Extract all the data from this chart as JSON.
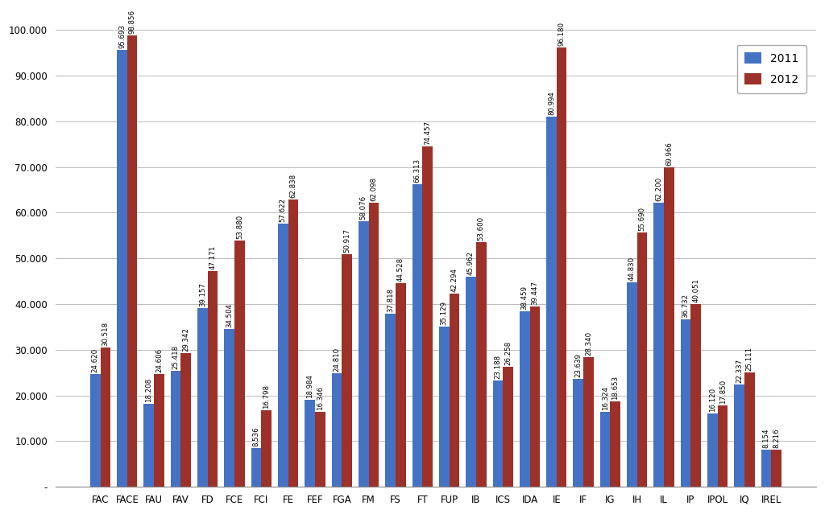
{
  "categories": [
    "FAC",
    "FACE",
    "FAU",
    "FAV",
    "FD",
    "FCE",
    "FCI",
    "FE",
    "FEF",
    "FGA",
    "FM",
    "FS",
    "FT",
    "FUP",
    "IB",
    "ICS",
    "IDA",
    "IE",
    "IF",
    "IG",
    "IH",
    "IL",
    "IP",
    "IPOL",
    "IQ",
    "IREL"
  ],
  "values_2011": [
    24620,
    95693,
    18208,
    25418,
    39157,
    34504,
    8536,
    57622,
    18984,
    24810,
    58076,
    37818,
    66313,
    35129,
    45962,
    23188,
    38459,
    80994,
    23639,
    16324,
    44830,
    62200,
    36732,
    16120,
    22337,
    8154
  ],
  "values_2012": [
    30518,
    98856,
    24606,
    29342,
    47171,
    53880,
    16798,
    62838,
    16346,
    50917,
    62098,
    44528,
    74457,
    42294,
    53600,
    26258,
    39447,
    96180,
    28340,
    18653,
    55690,
    69966,
    40051,
    17850,
    25111,
    8216
  ],
  "labels_2011": [
    "24.620",
    "95.693",
    "18.208",
    "25.418",
    "39.157",
    "34.504",
    "8.536",
    "57.622",
    "18.984",
    "24.810",
    "58.076",
    "37.818",
    "66.313",
    "35.129",
    "45.962",
    "23.188",
    "38.459",
    "80.994",
    "23.639",
    "16.324",
    "44.830",
    "62.200",
    "36.732",
    "16.120",
    "22.337",
    "8.154"
  ],
  "labels_2012": [
    "30.518",
    "98.856",
    "24.606",
    "29.342",
    "47.171",
    "53.880",
    "16.798",
    "62.838",
    "16.346",
    "50.917",
    "62.098",
    "44.528",
    "74.457",
    "42.294",
    "53.600",
    "26.258",
    "39.447",
    "96.180",
    "28.340",
    "18.653",
    "55.690",
    "69.966",
    "40.051",
    "17.850",
    "25.111",
    "8.216"
  ],
  "color_2011": "#4472C4",
  "color_2012": "#9B3128",
  "ylim_max": 100000,
  "ytick_step": 10000,
  "ytick_labels": [
    "-",
    "10.000",
    "20.000",
    "30.000",
    "40.000",
    "50.000",
    "60.000",
    "70.000",
    "80.000",
    "90.000",
    "100.000"
  ],
  "legend_labels": [
    "2011",
    "2012"
  ],
  "bar_width": 0.38,
  "label_fontsize": 6.2,
  "tick_fontsize": 8.5,
  "legend_fontsize": 10,
  "background_color": "#FFFFFF",
  "grid_color": "#BBBBBB"
}
